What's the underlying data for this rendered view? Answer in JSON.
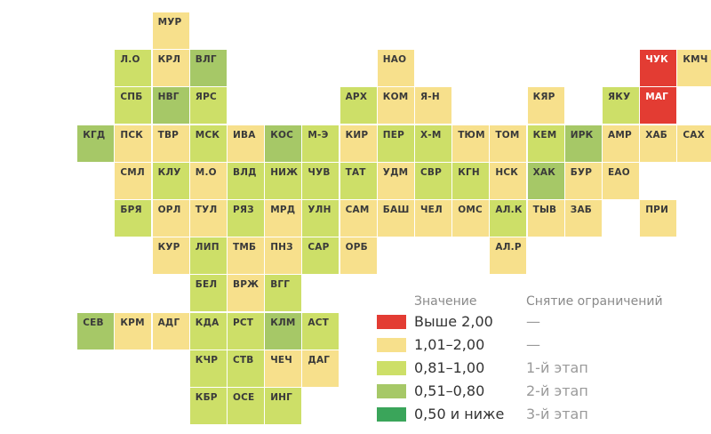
{
  "legend": {
    "value_header": "Значение",
    "stage_header": "Снятие ограничений",
    "items": [
      {
        "label": "Выше 2,00",
        "stage": "—",
        "color": "#e33c33"
      },
      {
        "label": "1,01–2,00",
        "stage": "—",
        "color": "#f7e08c"
      },
      {
        "label": "0,81–1,00",
        "stage": "1-й этап",
        "color": "#cddf68"
      },
      {
        "label": "0,51–0,80",
        "stage": "2-й этап",
        "color": "#a6c867"
      },
      {
        "label": "0,50 и ниже",
        "stage": "3-й этап",
        "color": "#3aa55a"
      }
    ]
  },
  "regions": [
    {
      "code": "МУР",
      "band": "1,01–2,00"
    },
    {
      "code": "Л.О",
      "band": "0,81–1,00"
    },
    {
      "code": "КРЛ",
      "band": "1,01–2,00"
    },
    {
      "code": "ВЛГ",
      "band": "0,51–0,80"
    },
    {
      "code": "НАО",
      "band": "1,01–2,00"
    },
    {
      "code": "ЧУК",
      "band": "Выше 2,00"
    },
    {
      "code": "КМЧ",
      "band": "1,01–2,00"
    },
    {
      "code": "СПБ",
      "band": "0,81–1,00"
    },
    {
      "code": "НВГ",
      "band": "0,51–0,80"
    },
    {
      "code": "ЯРС",
      "band": "0,81–1,00"
    },
    {
      "code": "АРХ",
      "band": "0,81–1,00"
    },
    {
      "code": "КОМ",
      "band": "1,01–2,00"
    },
    {
      "code": "Я-Н",
      "band": "1,01–2,00"
    },
    {
      "code": "КЯР",
      "band": "1,01–2,00"
    },
    {
      "code": "ЯКУ",
      "band": "0,81–1,00"
    },
    {
      "code": "МАГ",
      "band": "Выше 2,00"
    },
    {
      "code": "КГД",
      "band": "0,51–0,80"
    },
    {
      "code": "ПСК",
      "band": "1,01–2,00"
    },
    {
      "code": "ТВР",
      "band": "1,01–2,00"
    },
    {
      "code": "МСК",
      "band": "0,81–1,00"
    },
    {
      "code": "ИВА",
      "band": "1,01–2,00"
    },
    {
      "code": "КОС",
      "band": "0,51–0,80"
    },
    {
      "code": "М-Э",
      "band": "0,81–1,00"
    },
    {
      "code": "КИР",
      "band": "1,01–2,00"
    },
    {
      "code": "ПЕР",
      "band": "0,81–1,00"
    },
    {
      "code": "Х-М",
      "band": "0,81–1,00"
    },
    {
      "code": "ТЮМ",
      "band": "1,01–2,00"
    },
    {
      "code": "ТОМ",
      "band": "1,01–2,00"
    },
    {
      "code": "КЕМ",
      "band": "0,81–1,00"
    },
    {
      "code": "ИРК",
      "band": "0,51–0,80"
    },
    {
      "code": "АМР",
      "band": "1,01–2,00"
    },
    {
      "code": "ХАБ",
      "band": "1,01–2,00"
    },
    {
      "code": "САХ",
      "band": "1,01–2,00"
    },
    {
      "code": "СМЛ",
      "band": "1,01–2,00"
    },
    {
      "code": "КЛУ",
      "band": "0,81–1,00"
    },
    {
      "code": "М.О",
      "band": "1,01–2,00"
    },
    {
      "code": "ВЛД",
      "band": "0,81–1,00"
    },
    {
      "code": "НИЖ",
      "band": "0,81–1,00"
    },
    {
      "code": "ЧУВ",
      "band": "0,81–1,00"
    },
    {
      "code": "ТАТ",
      "band": "0,81–1,00"
    },
    {
      "code": "УДМ",
      "band": "1,01–2,00"
    },
    {
      "code": "СВР",
      "band": "0,81–1,00"
    },
    {
      "code": "КГН",
      "band": "0,81–1,00"
    },
    {
      "code": "НСК",
      "band": "1,01–2,00"
    },
    {
      "code": "ХАК",
      "band": "0,51–0,80"
    },
    {
      "code": "БУР",
      "band": "1,01–2,00"
    },
    {
      "code": "ЕАО",
      "band": "1,01–2,00"
    },
    {
      "code": "БРЯ",
      "band": "0,81–1,00"
    },
    {
      "code": "ОРЛ",
      "band": "1,01–2,00"
    },
    {
      "code": "ТУЛ",
      "band": "1,01–2,00"
    },
    {
      "code": "РЯЗ",
      "band": "0,81–1,00"
    },
    {
      "code": "МРД",
      "band": "1,01–2,00"
    },
    {
      "code": "УЛН",
      "band": "0,81–1,00"
    },
    {
      "code": "САМ",
      "band": "1,01–2,00"
    },
    {
      "code": "БАШ",
      "band": "1,01–2,00"
    },
    {
      "code": "ЧЕЛ",
      "band": "1,01–2,00"
    },
    {
      "code": "ОМС",
      "band": "1,01–2,00"
    },
    {
      "code": "АЛ.К",
      "band": "0,81–1,00"
    },
    {
      "code": "ТЫВ",
      "band": "1,01–2,00"
    },
    {
      "code": "ЗАБ",
      "band": "1,01–2,00"
    },
    {
      "code": "ПРИ",
      "band": "1,01–2,00"
    },
    {
      "code": "КУР",
      "band": "1,01–2,00"
    },
    {
      "code": "ЛИП",
      "band": "0,81–1,00"
    },
    {
      "code": "ТМБ",
      "band": "1,01–2,00"
    },
    {
      "code": "ПНЗ",
      "band": "1,01–2,00"
    },
    {
      "code": "САР",
      "band": "0,81–1,00"
    },
    {
      "code": "ОРБ",
      "band": "1,01–2,00"
    },
    {
      "code": "АЛ.Р",
      "band": "1,01–2,00"
    },
    {
      "code": "БЕЛ",
      "band": "0,81–1,00"
    },
    {
      "code": "ВРЖ",
      "band": "1,01–2,00"
    },
    {
      "code": "ВГГ",
      "band": "0,81–1,00"
    },
    {
      "code": "СЕВ",
      "band": "0,51–0,80"
    },
    {
      "code": "КРМ",
      "band": "1,01–2,00"
    },
    {
      "code": "АДГ",
      "band": "1,01–2,00"
    },
    {
      "code": "КДА",
      "band": "0,81–1,00"
    },
    {
      "code": "РСТ",
      "band": "0,81–1,00"
    },
    {
      "code": "КЛМ",
      "band": "0,51–0,80"
    },
    {
      "code": "АСТ",
      "band": "0,81–1,00"
    },
    {
      "code": "КЧР",
      "band": "0,81–1,00"
    },
    {
      "code": "СТВ",
      "band": "0,81–1,00"
    },
    {
      "code": "ЧЕЧ",
      "band": "1,01–2,00"
    },
    {
      "code": "ДАГ",
      "band": "1,01–2,00"
    },
    {
      "code": "КБР",
      "band": "0,81–1,00"
    },
    {
      "code": "ОСЕ",
      "band": "0,81–1,00"
    },
    {
      "code": "ИНГ",
      "band": "0,81–1,00"
    }
  ]
}
